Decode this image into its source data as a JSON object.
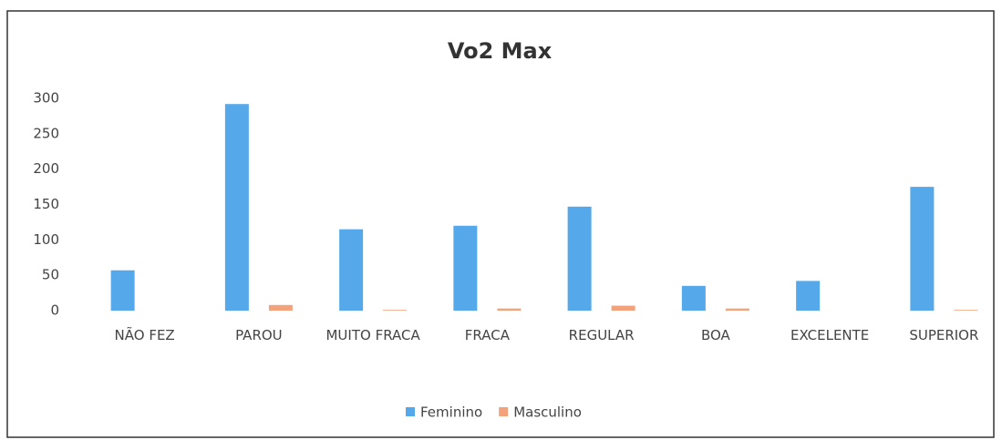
{
  "chart_data": {
    "type": "bar",
    "title": "Vo2 Max",
    "categories": [
      "NÃO FEZ",
      "PAROU",
      "MUITO FRACA",
      "FRACA",
      "REGULAR",
      "BOA",
      "EXCELENTE",
      "SUPERIOR"
    ],
    "series": [
      {
        "name": "Feminino",
        "color": "#55a9ea",
        "values": [
          57,
          292,
          115,
          120,
          147,
          35,
          42,
          175
        ]
      },
      {
        "name": "Masculino",
        "color": "#f3a27c",
        "values": [
          0,
          8,
          1,
          3,
          7,
          3,
          0,
          1
        ]
      }
    ],
    "ylim": [
      0,
      300
    ],
    "yticks": [
      0,
      50,
      100,
      150,
      200,
      250,
      300
    ],
    "grid": false,
    "legend": "bottom"
  }
}
